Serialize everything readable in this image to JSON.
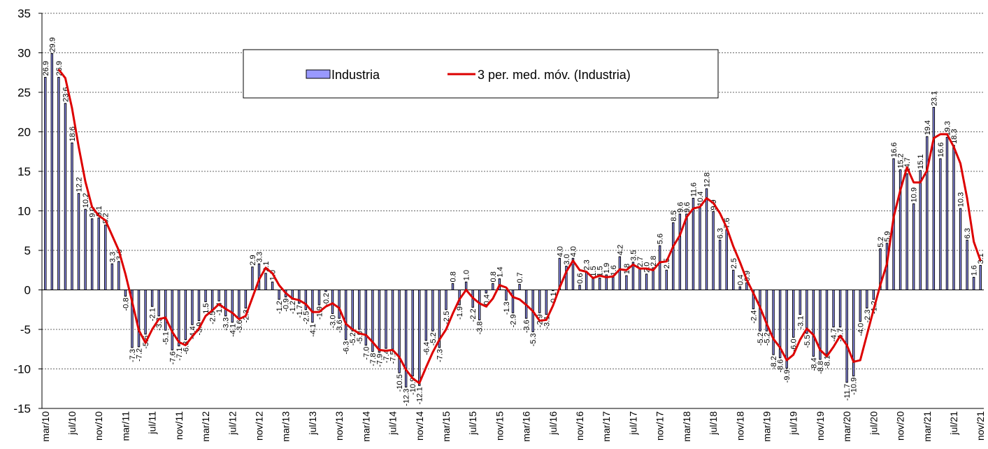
{
  "chart_data": {
    "type": "bar",
    "categories": [
      "mar/10",
      null,
      null,
      null,
      "jul/10",
      null,
      null,
      null,
      "nov/10",
      null,
      null,
      null,
      "mar/11",
      null,
      null,
      null,
      "jul/11",
      null,
      null,
      null,
      "nov/11",
      null,
      null,
      null,
      "mar/12",
      null,
      null,
      null,
      "jul/12",
      null,
      null,
      null,
      "nov/12",
      null,
      null,
      null,
      "mar/13",
      null,
      null,
      null,
      "jul/13",
      null,
      null,
      null,
      "nov/13",
      null,
      null,
      null,
      "mar/14",
      null,
      null,
      null,
      "jul/14",
      null,
      null,
      null,
      "nov/14",
      null,
      null,
      null,
      "mar/15",
      null,
      null,
      null,
      "jul/15",
      null,
      null,
      null,
      "nov/15",
      null,
      null,
      null,
      "mar/16",
      null,
      null,
      null,
      "jul/16",
      null,
      null,
      null,
      "nov/16",
      null,
      null,
      null,
      "mar/17",
      null,
      null,
      null,
      "jul/17",
      null,
      null,
      null,
      "nov/17",
      null,
      null,
      null,
      "mar/18",
      null,
      null,
      null,
      "jul/18",
      null,
      null,
      null,
      "nov/18",
      null,
      null,
      null,
      "mar/19",
      null,
      null,
      null,
      "jul/19",
      null,
      null,
      null,
      "nov/19",
      null,
      null,
      null,
      "mar/20",
      null,
      null,
      null,
      "jul/20",
      null,
      null,
      null,
      "nov/20",
      null,
      null,
      null,
      "mar/21",
      null,
      null,
      null,
      "jul/21",
      null,
      null,
      null,
      "nov/21"
    ],
    "series": [
      {
        "name": "Industria",
        "type": "bar",
        "color": "#9999ff",
        "values": [
          26.9,
          29.9,
          26.9,
          23.6,
          18.6,
          12.2,
          10.2,
          9.0,
          9.1,
          8.2,
          3.3,
          3.6,
          -0.8,
          -7.3,
          -7.2,
          -5.6,
          -2.1,
          -3.3,
          -5.1,
          -7.6,
          -7.1,
          -6.3,
          -4.4,
          -3.9,
          -1.5,
          -2.5,
          -1.4,
          -3.3,
          -4.1,
          -3.6,
          -2.3,
          2.9,
          3.3,
          2.1,
          1.0,
          -1.2,
          -0.9,
          -1.2,
          -1.7,
          -2.5,
          -4.1,
          -1.9,
          -0.2,
          -3.0,
          -3.6,
          -6.3,
          -5.2,
          -5.0,
          -7.0,
          -7.8,
          -7.9,
          -7.4,
          -7.5,
          -10.5,
          -12.3,
          -10.9,
          -12.1,
          -6.4,
          -5.2,
          -7.3,
          -2.5,
          0.8,
          -1.9,
          1.0,
          -2.2,
          -3.8,
          -0.4,
          0.8,
          1.4,
          -1.3,
          -2.9,
          0.7,
          -3.6,
          -5.3,
          -2.9,
          -3.1,
          -0.1,
          4.0,
          3.0,
          4.0,
          0.6,
          2.3,
          1.5,
          1.5,
          1.9,
          1.6,
          4.2,
          1.8,
          3.5,
          2.7,
          2.0,
          2.8,
          5.6,
          2.5,
          8.5,
          9.6,
          9.6,
          11.6,
          10.4,
          12.8,
          9.9,
          6.3,
          7.6,
          2.5,
          0.4,
          0.9,
          -2.4,
          -5.2,
          -5.2,
          -8.2,
          -8.6,
          -9.9,
          -6.0,
          -3.1,
          -5.5,
          -8.4,
          -8.8,
          -8.1,
          -4.7,
          -4.7,
          -11.7,
          -10.9,
          -4.0,
          -2.3,
          -1.2,
          5.2,
          5.9,
          16.6,
          15.2,
          14.7,
          10.9,
          15.1,
          19.4,
          23.1,
          16.6,
          19.3,
          18.3,
          10.3,
          6.3,
          1.6,
          3.1
        ],
        "value_labels": [
          "26.9",
          "29.9",
          "26.9",
          "23.6",
          "18.6",
          "12.2",
          "10.2",
          "9.0",
          "9.1",
          "8.2",
          "3.3",
          "3.6",
          "-0.8",
          "-7.3",
          "-7.2",
          "-5.6",
          "-2.1",
          "-3.3",
          "-5.1",
          "-7.6",
          "-7.1",
          "-6.3",
          "-4.4",
          "-3.9",
          "-1.5",
          "-2.5",
          "-1.4",
          "-3.3",
          "-4.1",
          "-3.6",
          "-2.3",
          "2.9",
          "3.3",
          "2.1",
          "1.0",
          "-1.2",
          "-0.9",
          "-1.2",
          "-1.7",
          "-2.5",
          "-4.1",
          "-1.9",
          "-0.2",
          "-3.0",
          "-3.6",
          "-6.3",
          "-5.2",
          "-5.0",
          "-7.0",
          "-7.8",
          "-7.9",
          "-7.4",
          "-7.5",
          "-10.5",
          "-12.3",
          "-10.9",
          "-12.1",
          "-6.4",
          "-5.2",
          "-7.3",
          "-2.5",
          "0.8",
          "-1.9",
          "1.0",
          "-2.2",
          "-3.8",
          "-0.4",
          "0.8",
          "1.4",
          "-1.3",
          "-2.9",
          "0.7",
          "-3.6",
          "-5.3",
          "-2.9",
          "-3.1",
          "-0.1",
          "4.0",
          "3.0",
          "4.0",
          "0.6",
          "2.3",
          "1.5",
          "1.5",
          "1.9",
          "1.6",
          "4.2",
          "1.8",
          "3.5",
          "2.7",
          "2.0",
          "2.8",
          "5.6",
          "2.5",
          "8.5",
          "9.6",
          "9.6",
          "11.6",
          "10.4",
          "12.8",
          "9.9",
          "6.3",
          "7.6",
          "2.5",
          "0.4",
          "0.9",
          "-2.4",
          "-5.2",
          "-5.2",
          "-8.2",
          "-8.6",
          "-9.9",
          "-6.0",
          "-3.1",
          "-5.5",
          "-8.4",
          "-8.8",
          "-8.1",
          "-4.7",
          "-4.7",
          "-11.7",
          "-10.9",
          "-4.0",
          "-2.3",
          "-1.2",
          "5.2",
          "5.9",
          "16.6",
          "15.2",
          "14.7",
          "10.9",
          "15.1",
          "19.4",
          "23.1",
          "16.6",
          "19.3",
          "18.3",
          "10.3",
          "6.3",
          "1.6",
          "3.1"
        ]
      },
      {
        "name": "3 per. med. móv. (Industria)",
        "type": "line",
        "color": "#dd0000",
        "values": [
          null,
          null,
          27.9,
          26.8,
          23.0,
          18.1,
          13.7,
          10.5,
          9.4,
          8.8,
          6.9,
          5.0,
          2.0,
          -1.5,
          -5.1,
          -6.7,
          -5.0,
          -3.7,
          -3.5,
          -5.3,
          -6.6,
          -7.0,
          -5.9,
          -4.9,
          -3.3,
          -2.6,
          -1.8,
          -2.4,
          -2.9,
          -3.7,
          -3.3,
          -1.0,
          1.3,
          2.8,
          2.1,
          0.6,
          -0.4,
          -1.1,
          -1.3,
          -1.8,
          -2.8,
          -2.8,
          -2.1,
          -1.7,
          -2.3,
          -4.3,
          -5.0,
          -5.5,
          -5.7,
          -6.6,
          -7.6,
          -7.7,
          -7.6,
          -8.5,
          -10.1,
          -11.2,
          -11.8,
          -9.8,
          -7.9,
          -6.3,
          -5.0,
          -3.0,
          -1.2,
          0.0,
          -1.0,
          -1.7,
          -2.1,
          -1.1,
          0.6,
          0.3,
          -0.9,
          -1.2,
          -1.9,
          -2.7,
          -3.9,
          -3.8,
          -2.0,
          0.3,
          2.3,
          3.7,
          2.5,
          2.3,
          1.5,
          1.8,
          1.6,
          1.7,
          2.6,
          2.5,
          3.2,
          2.7,
          2.7,
          2.5,
          3.5,
          3.6,
          5.5,
          6.9,
          9.2,
          10.3,
          10.5,
          11.6,
          11.0,
          9.7,
          7.9,
          5.5,
          3.5,
          1.3,
          -0.4,
          -2.2,
          -4.3,
          -6.2,
          -7.3,
          -8.9,
          -8.2,
          -6.3,
          -4.9,
          -5.7,
          -7.6,
          -8.4,
          -7.2,
          -5.8,
          -7.0,
          -9.1,
          -8.9,
          -5.7,
          -2.5,
          0.6,
          3.3,
          9.2,
          12.6,
          15.5,
          13.6,
          13.6,
          15.1,
          19.2,
          19.7,
          19.7,
          18.1,
          16.0,
          11.6,
          6.1,
          3.7
        ]
      }
    ],
    "ylim": [
      -15,
      35
    ],
    "yticks": [
      -15,
      -10,
      -5,
      0,
      5,
      10,
      15,
      20,
      25,
      30,
      35
    ],
    "grid": true,
    "legend": "top"
  }
}
